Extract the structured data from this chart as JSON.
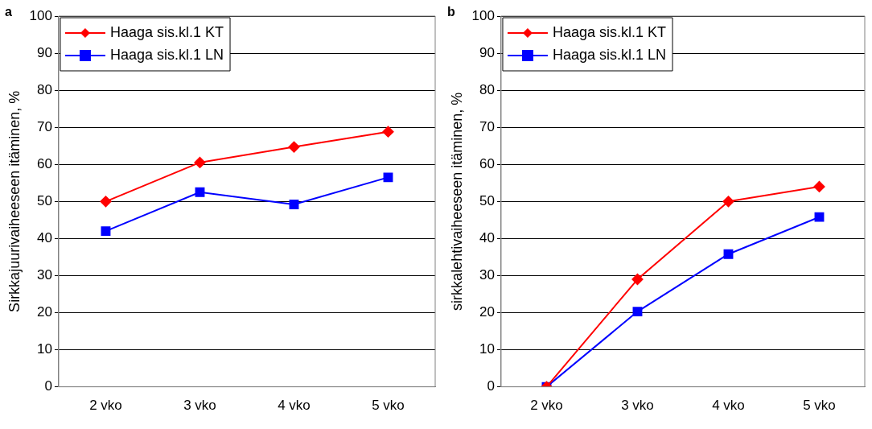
{
  "chart_data": [
    {
      "type": "line",
      "annotations": [
        "a"
      ],
      "ylabel": "Sirkkajuurivaiheeseen itäminen, %",
      "categories": [
        "2 vko",
        "3 vko",
        "4 vko",
        "5 vko"
      ],
      "ylim": [
        0,
        100
      ],
      "yticks": [
        0,
        10,
        20,
        30,
        40,
        50,
        60,
        70,
        80,
        90,
        100
      ],
      "grid": "y",
      "legend": "top left",
      "series": [
        {
          "name": "Haaga sis.kl.1 KT",
          "color": "#ff0000",
          "marker": "diamond",
          "values": [
            50,
            60.5,
            64.7,
            68.8
          ]
        },
        {
          "name": "Haaga sis.kl.1 LN",
          "color": "#0000ff",
          "marker": "square",
          "values": [
            42,
            52.5,
            49.2,
            56.5
          ]
        }
      ]
    },
    {
      "type": "line",
      "annotations": [
        "b"
      ],
      "ylabel": "sirkkalehtivaiheeseen itäminen, %",
      "categories": [
        "2 vko",
        "3 vko",
        "4 vko",
        "5 vko"
      ],
      "ylim": [
        0,
        100
      ],
      "yticks": [
        0,
        10,
        20,
        30,
        40,
        50,
        60,
        70,
        80,
        90,
        100
      ],
      "grid": "y",
      "legend": "top left",
      "series": [
        {
          "name": "Haaga sis.kl.1 KT",
          "color": "#ff0000",
          "marker": "diamond",
          "values": [
            0,
            29,
            50,
            54
          ]
        },
        {
          "name": "Haaga sis.kl.1 LN",
          "color": "#0000ff",
          "marker": "square",
          "values": [
            0,
            20.3,
            35.8,
            45.8
          ]
        }
      ]
    }
  ]
}
